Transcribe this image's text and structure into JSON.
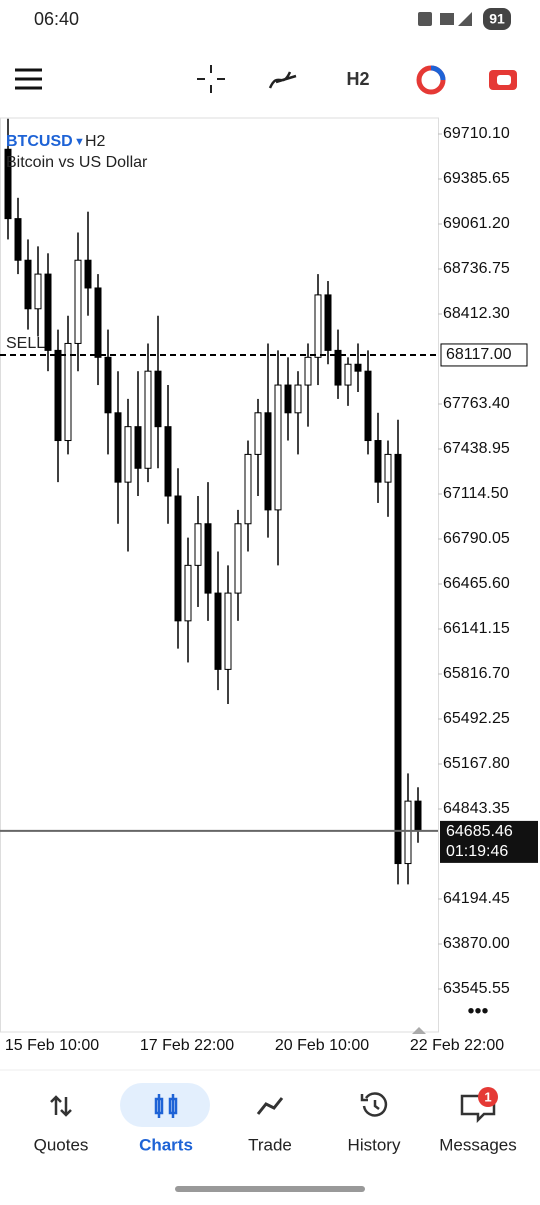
{
  "status_bar": {
    "time": "06:40",
    "battery": "91"
  },
  "toolbar": {
    "timeframe": "H2"
  },
  "chart_data": {
    "type": "candlestick",
    "symbol": "BTCUSD",
    "timeframe": "H2",
    "description": "Bitcoin vs US Dollar",
    "ylim": [
      63235.5,
      69825.5
    ],
    "yticks": [
      {
        "value": 69710.1,
        "label": "69710.10"
      },
      {
        "value": 69385.65,
        "label": "69385.65"
      },
      {
        "value": 69061.2,
        "label": "69061.20"
      },
      {
        "value": 68736.75,
        "label": "68736.75"
      },
      {
        "value": 68412.3,
        "label": "68412.30"
      },
      {
        "value": 67763.4,
        "label": "67763.40"
      },
      {
        "value": 67438.95,
        "label": "67438.95"
      },
      {
        "value": 67114.5,
        "label": "67114.50"
      },
      {
        "value": 66790.05,
        "label": "66790.05"
      },
      {
        "value": 66465.6,
        "label": "66465.60"
      },
      {
        "value": 66141.15,
        "label": "66141.15"
      },
      {
        "value": 65816.7,
        "label": "65816.70"
      },
      {
        "value": 65492.25,
        "label": "65492.25"
      },
      {
        "value": 65167.8,
        "label": "65167.80"
      },
      {
        "value": 64843.35,
        "label": "64843.35"
      },
      {
        "value": 64194.45,
        "label": "64194.45"
      },
      {
        "value": 63870,
        "label": "63870.00"
      },
      {
        "value": 63545.55,
        "label": "63545.55"
      }
    ],
    "x_labels": [
      "15 Feb 10:00",
      "17 Feb 22:00",
      "20 Feb 10:00",
      "22 Feb 22:00"
    ],
    "up_color": "#ffffff",
    "down_color": "#000000",
    "open": [
      69600,
      69100,
      68800,
      68450,
      68700,
      68150,
      67500,
      68200,
      68800,
      68600,
      68100,
      67700,
      67200,
      67600,
      67300,
      68000,
      67600,
      67100,
      66200,
      66600,
      66900,
      66400,
      65850,
      66400,
      66900,
      67400,
      67700,
      67000,
      67900,
      67700,
      67900,
      68100,
      68550,
      68150,
      67900,
      68050,
      68000,
      67500,
      67200,
      67400,
      64450,
      64900
    ],
    "high": [
      69820,
      69250,
      68950,
      68900,
      68850,
      68300,
      68400,
      69000,
      69150,
      68700,
      68300,
      68000,
      67800,
      68000,
      68200,
      68400,
      67900,
      67300,
      66800,
      67100,
      67200,
      66700,
      66600,
      67000,
      67500,
      67800,
      68200,
      68150,
      68100,
      68000,
      68200,
      68700,
      68650,
      68300,
      68100,
      68200,
      68150,
      67700,
      67500,
      67650,
      65100,
      65000
    ],
    "low": [
      68950,
      68700,
      68300,
      68250,
      68000,
      67200,
      67400,
      68000,
      68400,
      67900,
      67400,
      66900,
      66700,
      67100,
      67200,
      67300,
      66900,
      66000,
      65900,
      66300,
      66200,
      65700,
      65600,
      66200,
      66700,
      67100,
      66800,
      66600,
      67500,
      67400,
      67600,
      67900,
      68050,
      67800,
      67750,
      67850,
      67400,
      67050,
      66950,
      64300,
      64300,
      64600
    ],
    "close": [
      69100,
      68800,
      68450,
      68700,
      68150,
      67500,
      68200,
      68800,
      68600,
      68100,
      67700,
      67200,
      67600,
      67300,
      68000,
      67600,
      67100,
      66200,
      66600,
      66900,
      66400,
      65850,
      66400,
      66900,
      67400,
      67700,
      67000,
      67900,
      67700,
      67900,
      68100,
      68550,
      68150,
      67900,
      68050,
      68000,
      67500,
      67200,
      67400,
      64450,
      64900,
      64685.46
    ],
    "order_line": {
      "name": "SELL",
      "price": {
        "value": 68117,
        "label": "68117.00"
      }
    },
    "current_price": 64685.46,
    "bar_timer": "01:19:46"
  },
  "nav": {
    "items": [
      "Quotes",
      "Charts",
      "Trade",
      "History",
      "Messages"
    ],
    "active": 1,
    "badge": "1"
  }
}
